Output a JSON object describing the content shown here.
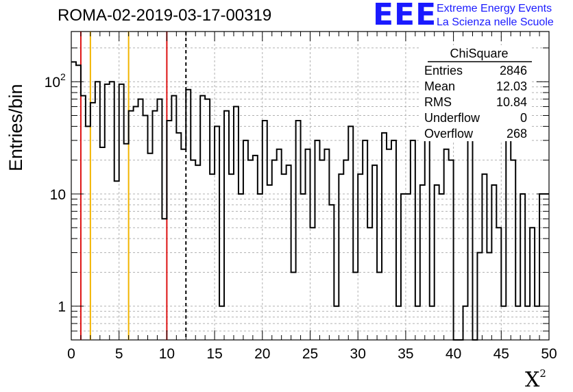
{
  "title": "ROMA-02-2019-03-17-00319",
  "logo": {
    "mark": "EEE",
    "line1": "Extreme Energy Events",
    "line2": "La Scienza nelle Scuole",
    "color": "#1a1aff"
  },
  "stats_box": {
    "header": "ChiSquare",
    "rows": [
      {
        "label": "Entries",
        "value": "2846"
      },
      {
        "label": "Mean",
        "value": "12.03"
      },
      {
        "label": "RMS",
        "value": "10.84"
      },
      {
        "label": "Underflow",
        "value": "0"
      },
      {
        "label": "Overflow",
        "value": "268"
      }
    ]
  },
  "chart_data": {
    "type": "bar",
    "subtype": "step-histogram",
    "title": "ROMA-02-2019-03-17-00319",
    "xlabel": "X",
    "xlabel_superscript": "2",
    "ylabel": "Entries/bin",
    "xlim": [
      0,
      50
    ],
    "ylim": [
      0.5,
      280
    ],
    "yscale": "log",
    "grid": true,
    "bin_width": 0.5,
    "x_ticks": [
      0,
      5,
      10,
      15,
      20,
      25,
      30,
      35,
      40,
      45,
      50
    ],
    "x_tick_labels": [
      "0",
      "5",
      "10",
      "15",
      "20",
      "25",
      "30",
      "35",
      "40",
      "45",
      "50"
    ],
    "y_ticks": [
      1,
      10,
      100
    ],
    "y_tick_labels": [
      "1",
      "10",
      "10",
      "2"
    ],
    "values": [
      150,
      140,
      75,
      40,
      65,
      100,
      26,
      95,
      100,
      13,
      95,
      28,
      55,
      60,
      70,
      50,
      23,
      55,
      70,
      6,
      45,
      75,
      35,
      25,
      85,
      20,
      18,
      75,
      70,
      15,
      40,
      1,
      55,
      15,
      60,
      10,
      30,
      20,
      22,
      10,
      45,
      12,
      20,
      25,
      15,
      18,
      2,
      45,
      10,
      25,
      5,
      30,
      20,
      25,
      8,
      1,
      15,
      20,
      40,
      2,
      15,
      30,
      5,
      18,
      2,
      35,
      25,
      30,
      1,
      10,
      10,
      30,
      1,
      12,
      40,
      1,
      12,
      10,
      25,
      20,
      0.5,
      0.5,
      1,
      30,
      0.5,
      3,
      15,
      3,
      12,
      5,
      1,
      45,
      20,
      1,
      10,
      1,
      5,
      1,
      10,
      10
    ],
    "vertical_lines": [
      {
        "x": 1,
        "color": "#dd1111",
        "style": "solid"
      },
      {
        "x": 2,
        "color": "#f2b400",
        "style": "solid"
      },
      {
        "x": 6,
        "color": "#f2b400",
        "style": "solid"
      },
      {
        "x": 10,
        "color": "#dd1111",
        "style": "solid"
      },
      {
        "x": 12,
        "color": "#000000",
        "style": "dashed"
      }
    ]
  }
}
